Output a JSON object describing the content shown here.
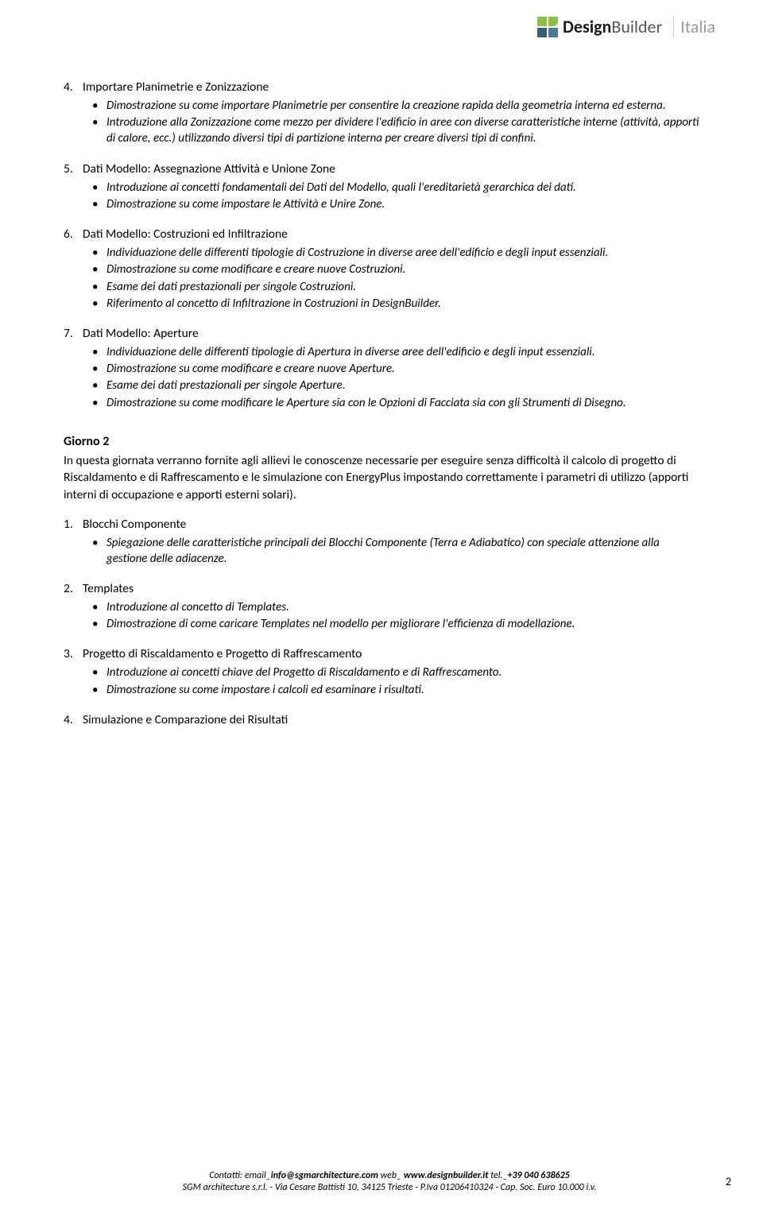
{
  "logo": {
    "colors": {
      "green": "#8bbf3f",
      "darkblue": "#3a5a7a",
      "midblue": "#4a7a9a"
    },
    "brand_bold": "Design",
    "brand_light": "Builder",
    "italia": "Italia"
  },
  "sections_a": [
    {
      "num": "4.",
      "title": "Importare Planimetrie e Zonizzazione",
      "items": [
        "Dimostrazione su come importare Planimetrie per consentire la creazione rapida della geometria interna ed esterna.",
        "Introduzione alla Zonizzazione come mezzo per dividere l'edificio in aree con diverse caratteristiche interne (attività, apporti di calore, ecc.) utilizzando diversi tipi di partizione interna per creare diversi tipi di confini."
      ]
    },
    {
      "num": "5.",
      "title": "Dati Modello: Assegnazione Attività e Unione Zone",
      "items": [
        "Introduzione ai concetti fondamentali dei Dati del Modello, quali l'ereditarietà gerarchica dei dati.",
        "Dimostrazione su come impostare le Attività e Unire Zone."
      ]
    },
    {
      "num": "6.",
      "title": "Dati Modello: Costruzioni ed Infiltrazione",
      "items": [
        "Individuazione delle differenti tipologie di Costruzione in diverse aree dell'edificio e degli input essenziali.",
        "Dimostrazione su come modificare e creare nuove Costruzioni.",
        "Esame dei dati prestazionali per singole Costruzioni.",
        "Riferimento al concetto di Infiltrazione in Costruzioni in DesignBuilder."
      ]
    },
    {
      "num": "7.",
      "title": "Dati Modello: Aperture",
      "items": [
        "Individuazione delle differenti tipologie di Apertura in diverse aree dell'edificio e degli input essenziali.",
        "Dimostrazione su come modificare e creare nuove Aperture.",
        "Esame dei dati prestazionali per singole Aperture.",
        "Dimostrazione su come modificare le Aperture sia con le Opzioni di Facciata sia con gli Strumenti di Disegno."
      ]
    }
  ],
  "day2": {
    "title": "Giorno 2",
    "intro": "In questa giornata verranno fornite agli allievi le conoscenze necessarie per eseguire senza difficoltà il calcolo di progetto di Riscaldamento e di Raffrescamento e le simulazione con EnergyPlus impostando correttamente i parametri di utilizzo (apporti interni di occupazione e apporti esterni solari)."
  },
  "sections_b": [
    {
      "num": "1.",
      "title": "Blocchi Componente",
      "items": [
        "Spiegazione delle caratteristiche principali dei Blocchi Componente (Terra e Adiabatico) con speciale attenzione alla gestione delle adiacenze."
      ]
    },
    {
      "num": "2.",
      "title": "Templates",
      "items": [
        "Introduzione al concetto di Templates.",
        "Dimostrazione di come caricare Templates nel modello per migliorare l'efficienza di modellazione."
      ]
    },
    {
      "num": "3.",
      "title": "Progetto di Riscaldamento e Progetto di Raffrescamento",
      "items": [
        "Introduzione ai concetti chiave del Progetto di Riscaldamento e di Raffrescamento.",
        "Dimostrazione su come impostare i calcoli ed esaminare i risultati."
      ]
    },
    {
      "num": "4.",
      "title": "Simulazione e Comparazione dei Risultati",
      "items": []
    }
  ],
  "footer": {
    "contact_label": "Contatti: email_",
    "email": "info@sgmarchitecture.com",
    "web_label": " web_ ",
    "web": "www.designbuilder.it",
    "tel_label": "  tel._",
    "tel": "+39 040 638625",
    "line2": "SGM architecture s.r.l. - Via Cesare Battisti 10, 34125 Trieste - P.Iva 01206410324 - Cap. Soc. Euro 10.000 i.v."
  },
  "page_num": "2"
}
